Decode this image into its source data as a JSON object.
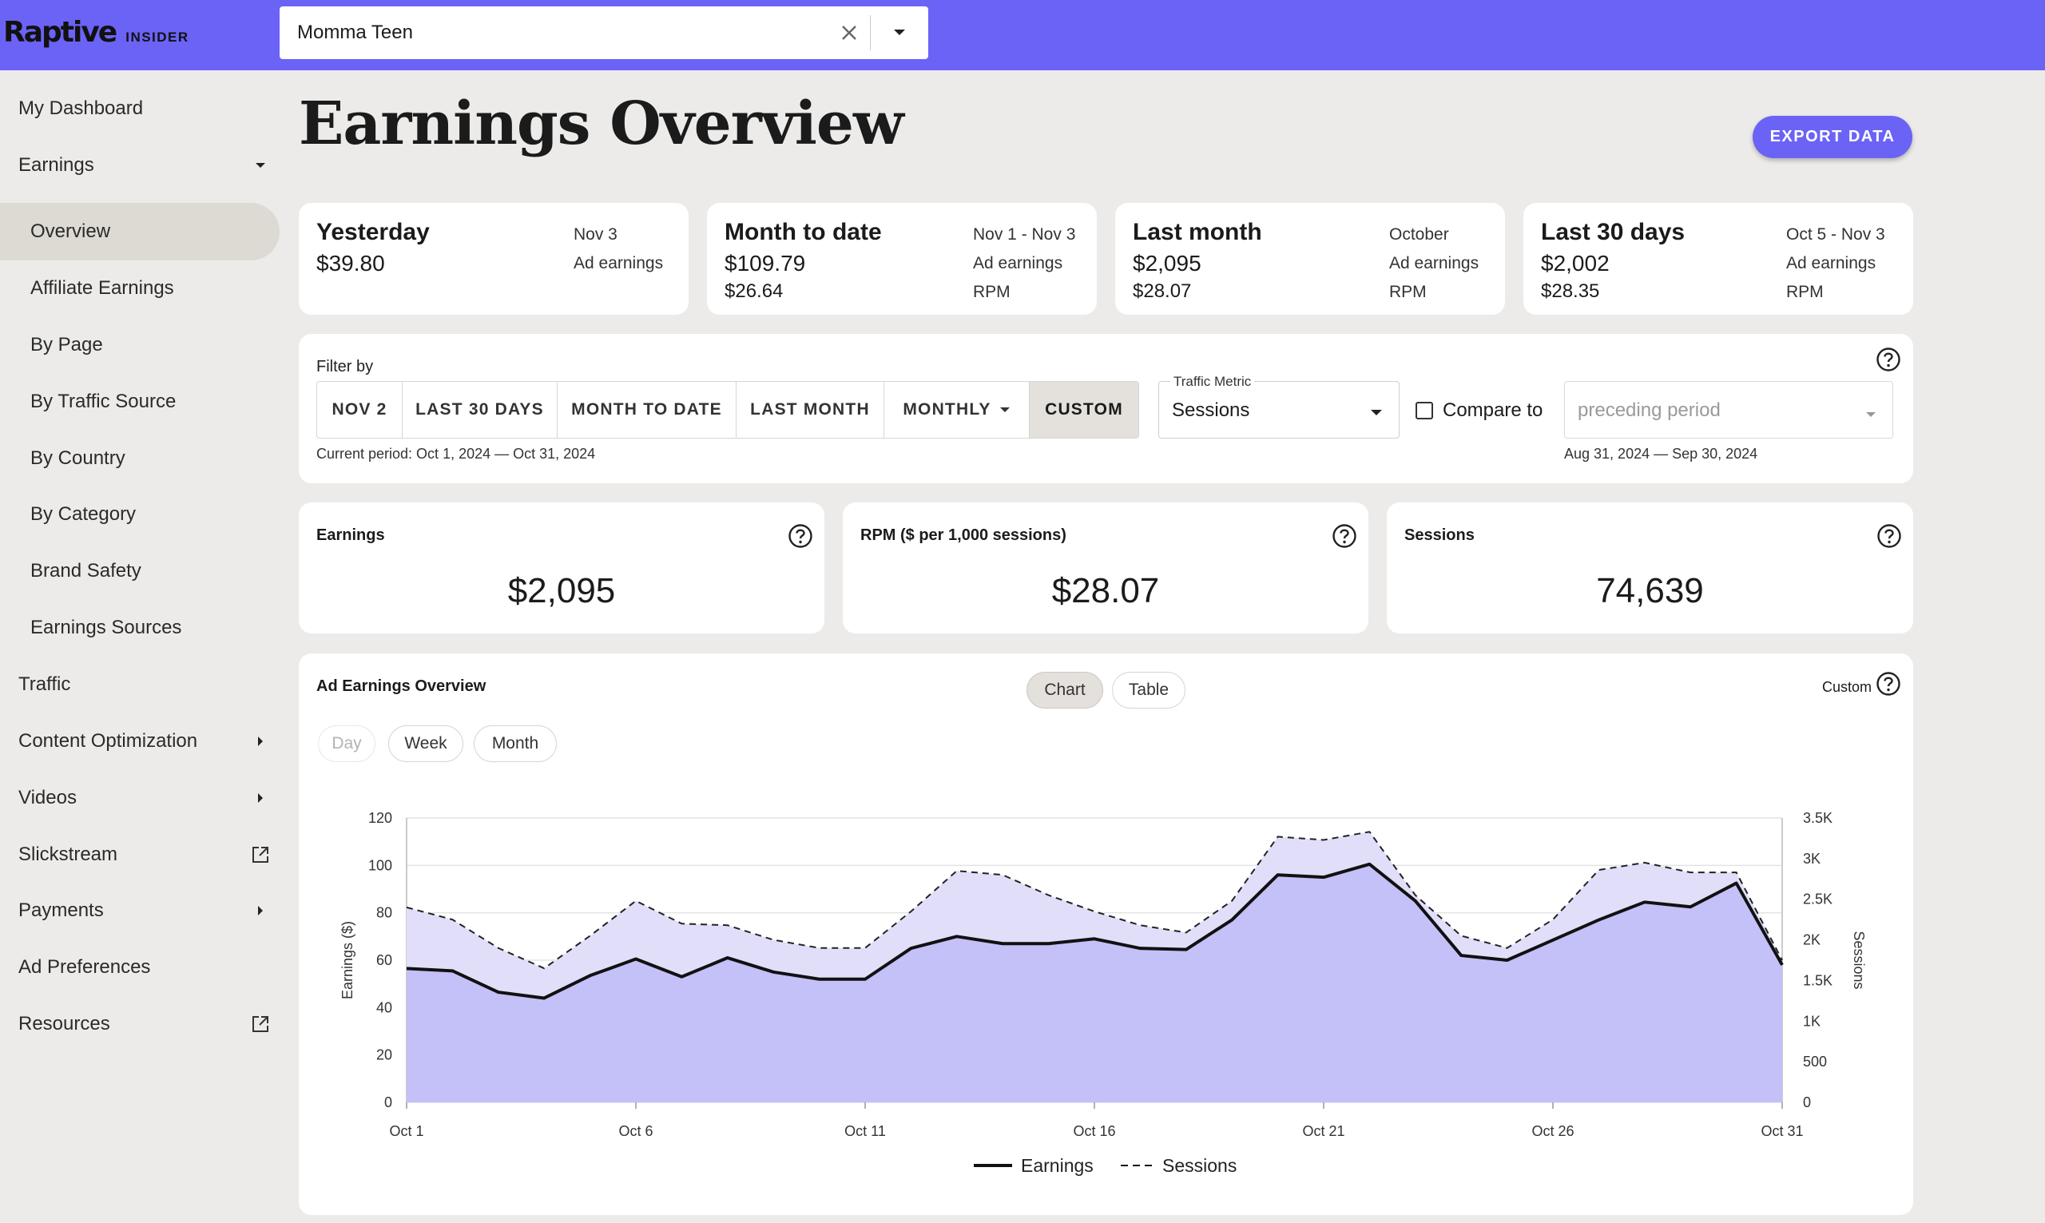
{
  "header": {
    "logo_word": "Raptive",
    "logo_sub": "INSIDER",
    "site_select_value": "Momma Teen"
  },
  "sidebar": {
    "items": [
      {
        "label": "My Dashboard"
      },
      {
        "label": "Earnings"
      },
      {
        "label": "Overview"
      },
      {
        "label": "Affiliate Earnings"
      },
      {
        "label": "By Page"
      },
      {
        "label": "By Traffic Source"
      },
      {
        "label": "By Country"
      },
      {
        "label": "By Category"
      },
      {
        "label": "Brand Safety"
      },
      {
        "label": "Earnings Sources"
      },
      {
        "label": "Traffic"
      },
      {
        "label": "Content Optimization"
      },
      {
        "label": "Videos"
      },
      {
        "label": "Slickstream"
      },
      {
        "label": "Payments"
      },
      {
        "label": "Ad Preferences"
      },
      {
        "label": "Resources"
      }
    ],
    "active": "Overview"
  },
  "main": {
    "title": "Earnings Overview",
    "export_label": "EXPORT DATA",
    "summary_cards": [
      {
        "title": "Yesterday",
        "value1": "$39.80",
        "value2": "",
        "range": "Nov 3",
        "label1": "Ad earnings",
        "label2": ""
      },
      {
        "title": "Month to date",
        "value1": "$109.79",
        "value2": "$26.64",
        "range": "Nov 1 - Nov 3",
        "label1": "Ad earnings",
        "label2": "RPM"
      },
      {
        "title": "Last month",
        "value1": "$2,095",
        "value2": "$28.07",
        "range": "October",
        "label1": "Ad earnings",
        "label2": "RPM"
      },
      {
        "title": "Last 30 days",
        "value1": "$2,002",
        "value2": "$28.35",
        "range": "Oct 5 - Nov 3",
        "label1": "Ad earnings",
        "label2": "RPM"
      }
    ],
    "filter": {
      "label": "Filter by",
      "buttons": [
        "NOV 2",
        "LAST 30 DAYS",
        "MONTH TO DATE",
        "LAST MONTH",
        "MONTHLY",
        "CUSTOM"
      ],
      "selected": "CUSTOM",
      "current_period": "Current period: Oct 1, 2024 — Oct 31, 2024",
      "traffic_metric_label": "Traffic Metric",
      "traffic_metric_value": "Sessions",
      "compare_label": "Compare to",
      "compare_checked": false,
      "compare_placeholder": "preceding period",
      "compare_period": "Aug 31, 2024 — Sep 30, 2024"
    },
    "kpis": [
      {
        "title": "Earnings",
        "value": "$2,095"
      },
      {
        "title": "RPM ($ per 1,000 sessions)",
        "value": "$28.07"
      },
      {
        "title": "Sessions",
        "value": "74,639"
      }
    ],
    "chart_panel": {
      "title": "Ad Earnings Overview",
      "view_tabs": [
        "Chart",
        "Table"
      ],
      "view_selected": "Chart",
      "granularity": [
        "Day",
        "Week",
        "Month"
      ],
      "granularity_disabled": "Day",
      "custom_label": "Custom"
    }
  },
  "colors": {
    "accent": "#6b63f5",
    "sessions_fill": "#e1defa",
    "earnings_fill": "#c4c0f8",
    "line": "#111111"
  },
  "chart_data": {
    "type": "area",
    "x": [
      "Oct 1",
      "Oct 2",
      "Oct 3",
      "Oct 4",
      "Oct 5",
      "Oct 6",
      "Oct 7",
      "Oct 8",
      "Oct 9",
      "Oct 10",
      "Oct 11",
      "Oct 12",
      "Oct 13",
      "Oct 14",
      "Oct 15",
      "Oct 16",
      "Oct 17",
      "Oct 18",
      "Oct 19",
      "Oct 20",
      "Oct 21",
      "Oct 22",
      "Oct 23",
      "Oct 24",
      "Oct 25",
      "Oct 26",
      "Oct 27",
      "Oct 28",
      "Oct 29",
      "Oct 30",
      "Oct 31"
    ],
    "x_ticks": [
      "Oct 1",
      "Oct 6",
      "Oct 11",
      "Oct 16",
      "Oct 21",
      "Oct 26",
      "Oct 31"
    ],
    "series": [
      {
        "name": "Earnings",
        "axis": "left",
        "style": "solid",
        "values": [
          56.5,
          55.5,
          46.5,
          44,
          53.5,
          60.5,
          53,
          61,
          55,
          52,
          52,
          65,
          70,
          67,
          67,
          69,
          65,
          64.5,
          77,
          96,
          95,
          100.5,
          85,
          62,
          60,
          68.5,
          77,
          84.5,
          82.5,
          92.5,
          58
        ]
      },
      {
        "name": "Sessions",
        "axis": "right",
        "style": "dashed",
        "values": [
          2400,
          2250,
          1900,
          1650,
          2050,
          2480,
          2200,
          2180,
          2000,
          1900,
          1900,
          2350,
          2850,
          2800,
          2550,
          2350,
          2180,
          2090,
          2480,
          3270,
          3230,
          3330,
          2550,
          2050,
          1900,
          2250,
          2860,
          2950,
          2830,
          2830,
          1750
        ]
      }
    ],
    "ylabel": "Earnings ($)",
    "y2label": "Sessions",
    "ylim": [
      0,
      120
    ],
    "y_ticks": [
      0,
      20,
      40,
      60,
      80,
      100,
      120
    ],
    "y2lim": [
      0,
      3500
    ],
    "y2_ticks": [
      "0",
      "500",
      "1K",
      "1.5K",
      "2K",
      "2.5K",
      "3K",
      "3.5K"
    ],
    "grid": true,
    "legend": "bottom-center"
  }
}
